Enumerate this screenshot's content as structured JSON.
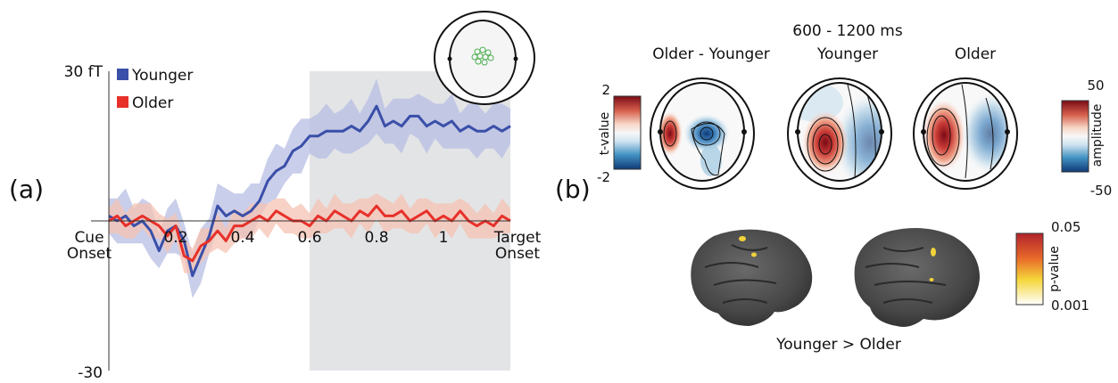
{
  "panel_a": {
    "label": "(a)",
    "y_max_label": "30 fT",
    "y_min_label": "-30",
    "x_start_label": [
      "Cue",
      "Onset"
    ],
    "x_end_label": [
      "Target",
      "Onset"
    ],
    "x_ticks": [
      "0.2",
      "0.4",
      "0.6",
      "0.8",
      "1"
    ]
  },
  "panel_b": {
    "label": "(b)",
    "time_window": "600 - 1200 ms",
    "maps": [
      "Older - Younger",
      "Younger",
      "Older"
    ],
    "tvalue_bar": {
      "title": "t-value",
      "max": "2",
      "min": "-2"
    },
    "amplitude_bar": {
      "title": "amplitude",
      "max": "50",
      "min": "-50"
    },
    "pvalue_bar": {
      "title": "p-value",
      "max": "0.05",
      "min": "0.001"
    },
    "brain_caption": "Younger > Older"
  },
  "colors": {
    "younger": "#3a4fa8",
    "older": "#e8302a",
    "younger_band": "#b7bde3",
    "older_band": "#f6c3b3",
    "window_shade": "#e3e4e6"
  },
  "chart_data": {
    "type": "line",
    "x": [
      0,
      0.025,
      0.05,
      0.075,
      0.1,
      0.125,
      0.15,
      0.175,
      0.2,
      0.225,
      0.25,
      0.275,
      0.3,
      0.325,
      0.35,
      0.375,
      0.4,
      0.425,
      0.45,
      0.475,
      0.5,
      0.525,
      0.55,
      0.575,
      0.6,
      0.625,
      0.65,
      0.675,
      0.7,
      0.725,
      0.75,
      0.775,
      0.8,
      0.825,
      0.85,
      0.875,
      0.9,
      0.925,
      0.95,
      0.975,
      1.0,
      1.025,
      1.05,
      1.075,
      1.1,
      1.125,
      1.15,
      1.175,
      1.2
    ],
    "xlim": [
      0,
      1.2
    ],
    "ylim": [
      -30,
      30
    ],
    "y_unit": "fT",
    "shaded_window": [
      0.6,
      1.2
    ],
    "series": [
      {
        "name": "Younger",
        "color": "#3a4fa8",
        "values": [
          1,
          0,
          1,
          -1,
          0,
          -2,
          -6,
          -2,
          -1,
          -4,
          -11,
          -7,
          -3,
          3,
          1,
          2,
          1,
          2,
          4,
          8,
          10,
          11,
          14,
          15,
          17,
          17,
          18,
          18,
          18,
          19,
          18,
          20,
          23,
          19,
          20,
          19,
          21,
          21,
          19,
          20,
          19,
          20,
          18,
          19,
          18,
          18,
          19,
          18,
          19
        ]
      },
      {
        "name": "Older",
        "color": "#e8302a",
        "values": [
          0,
          1,
          -1,
          0,
          1,
          0,
          -1,
          -3,
          -1,
          -7,
          -8,
          -5,
          -4,
          -2,
          -4,
          -1,
          -1,
          0,
          1,
          0,
          2,
          1,
          0,
          0,
          -1,
          1,
          0,
          2,
          1,
          0,
          2,
          1,
          3,
          1,
          1,
          2,
          0,
          1,
          2,
          0,
          1,
          0,
          2,
          0,
          -1,
          0,
          -1,
          1,
          0
        ]
      }
    ]
  }
}
